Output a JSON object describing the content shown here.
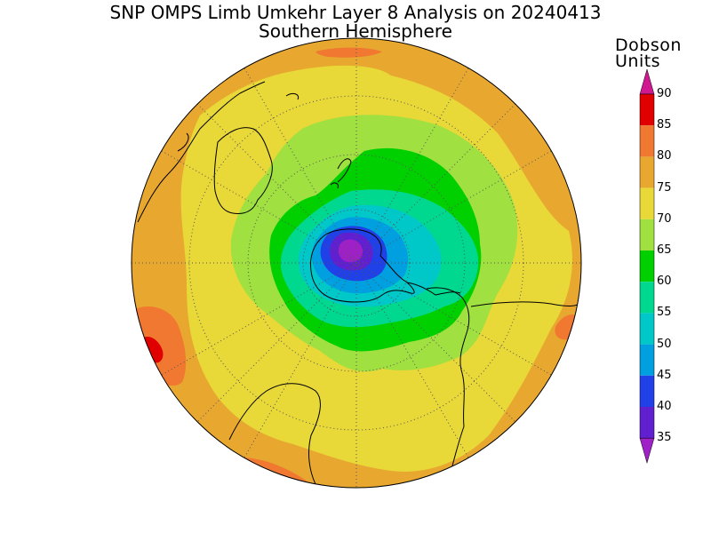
{
  "header": {
    "title": "SNP OMPS Limb Umkehr Layer 8 Analysis on 20240413",
    "subtitle": "Southern Hemisphere"
  },
  "legend": {
    "units_line1": "Dobson",
    "units_line2": "Units",
    "levels": [
      {
        "value": "90",
        "color": "#e00000"
      },
      {
        "value": "85",
        "color": "#f07830"
      },
      {
        "value": "80",
        "color": "#e8a830"
      },
      {
        "value": "75",
        "color": "#e8d838"
      },
      {
        "value": "70",
        "color": "#a0e040"
      },
      {
        "value": "65",
        "color": "#00d000"
      },
      {
        "value": "60",
        "color": "#00d890"
      },
      {
        "value": "55",
        "color": "#00c8c8"
      },
      {
        "value": "50",
        "color": "#00a0e0"
      },
      {
        "value": "45",
        "color": "#2040e8"
      },
      {
        "value": "40",
        "color": "#6020d0"
      },
      {
        "value": "35",
        "color": "#a020c8"
      }
    ]
  },
  "map": {
    "projection": "polar stereographic",
    "hemisphere": "south",
    "background_color": "#e8a830"
  }
}
